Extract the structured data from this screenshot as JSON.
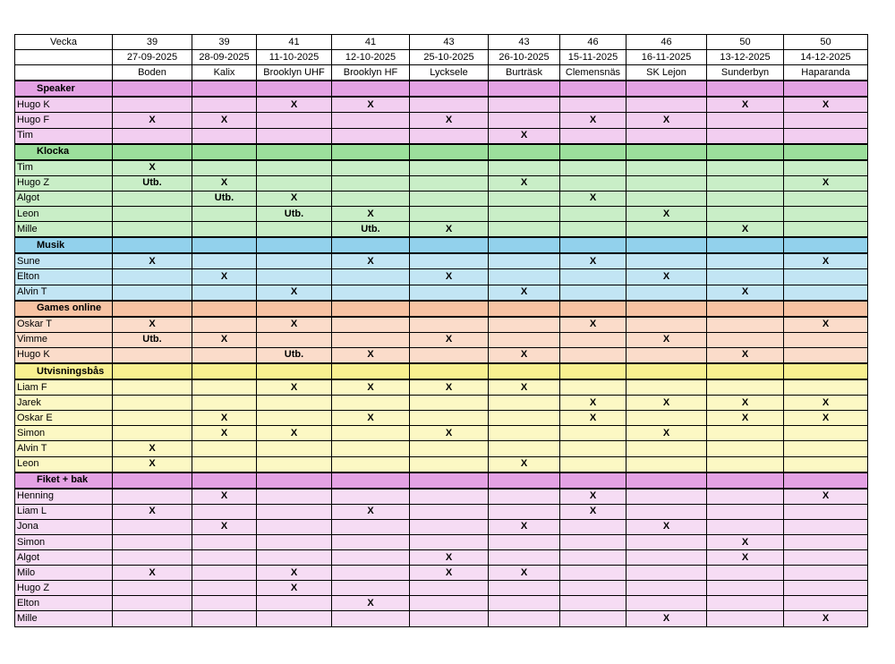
{
  "header": {
    "label": "Vecka",
    "weeks": [
      "39",
      "39",
      "41",
      "41",
      "43",
      "43",
      "46",
      "46",
      "50",
      "50"
    ],
    "dates": [
      "27-09-2025",
      "28-09-2025",
      "11-10-2025",
      "12-10-2025",
      "25-10-2025",
      "26-10-2025",
      "15-11-2025",
      "16-11-2025",
      "13-12-2025",
      "14-12-2025"
    ],
    "places": [
      "Boden",
      "Kalix",
      "Brooklyn UHF",
      "Brooklyn HF",
      "Lycksele",
      "Burträsk",
      "Clemensnäs",
      "SK Lejon",
      "Sunderbyn",
      "Haparanda"
    ]
  },
  "sections": [
    {
      "title": "Speaker",
      "section_color": "#e4a2e4",
      "row_color": "#f2cef0",
      "rows": [
        {
          "name": "Hugo K",
          "cells": [
            "",
            "",
            "X",
            "X",
            "",
            "",
            "",
            "",
            "X",
            "X"
          ]
        },
        {
          "name": "Hugo F",
          "cells": [
            "X",
            "X",
            "",
            "",
            "X",
            "",
            "X",
            "X",
            "",
            ""
          ]
        },
        {
          "name": "Tim",
          "cells": [
            "",
            "",
            "",
            "",
            "",
            "X",
            "",
            "",
            "",
            ""
          ]
        }
      ]
    },
    {
      "title": "Klocka",
      "section_color": "#9cdf9c",
      "row_color": "#c9eec7",
      "rows": [
        {
          "name": "Tim",
          "cells": [
            "X",
            "",
            "",
            "",
            "",
            "",
            "",
            "",
            "",
            ""
          ]
        },
        {
          "name": "Hugo Z",
          "cells": [
            "Utb.",
            "X",
            "",
            "",
            "",
            "X",
            "",
            "",
            "",
            "X"
          ]
        },
        {
          "name": "Algot",
          "cells": [
            "",
            "Utb.",
            "X",
            "",
            "",
            "",
            "X",
            "",
            "",
            ""
          ]
        },
        {
          "name": "Leon",
          "cells": [
            "",
            "",
            "Utb.",
            "X",
            "",
            "",
            "",
            "X",
            "",
            ""
          ]
        },
        {
          "name": "Mille",
          "cells": [
            "",
            "",
            "",
            "Utb.",
            "X",
            "",
            "",
            "",
            "X",
            ""
          ]
        }
      ]
    },
    {
      "title": "Musik",
      "section_color": "#92d1ec",
      "row_color": "#c2e5f4",
      "rows": [
        {
          "name": "Sune",
          "cells": [
            "X",
            "",
            "",
            "X",
            "",
            "",
            "X",
            "",
            "",
            "X"
          ]
        },
        {
          "name": "Elton",
          "cells": [
            "",
            "X",
            "",
            "",
            "X",
            "",
            "",
            "X",
            "",
            ""
          ]
        },
        {
          "name": "Alvin T",
          "cells": [
            "",
            "",
            "X",
            "",
            "",
            "X",
            "",
            "",
            "X",
            ""
          ]
        }
      ]
    },
    {
      "title": "Games online",
      "section_color": "#f7c3a3",
      "row_color": "#fbdcca",
      "rows": [
        {
          "name": "Oskar T",
          "cells": [
            "X",
            "",
            "X",
            "",
            "",
            "",
            "X",
            "",
            "",
            "X"
          ]
        },
        {
          "name": "Vimme",
          "cells": [
            "Utb.",
            "X",
            "",
            "",
            "X",
            "",
            "",
            "X",
            "",
            ""
          ]
        },
        {
          "name": "Hugo K",
          "cells": [
            "",
            "",
            "Utb.",
            "X",
            "",
            "X",
            "",
            "",
            "X",
            ""
          ]
        }
      ]
    },
    {
      "title": "Utvisningsbås",
      "section_color": "#f8f090",
      "row_color": "#fcf8c4",
      "rows": [
        {
          "name": "Liam F",
          "cells": [
            "",
            "",
            "X",
            "X",
            "X",
            "X",
            "",
            "",
            "",
            ""
          ]
        },
        {
          "name": "Jarek",
          "cells": [
            "",
            "",
            "",
            "",
            "",
            "",
            "X",
            "X",
            "X",
            "X"
          ]
        },
        {
          "name": "Oskar E",
          "cells": [
            "",
            "X",
            "",
            "X",
            "",
            "",
            "X",
            "",
            "X",
            "X"
          ]
        },
        {
          "name": "Simon",
          "cells": [
            "",
            "X",
            "X",
            "",
            "X",
            "",
            "",
            "X",
            "",
            ""
          ]
        },
        {
          "name": "Alvin T",
          "cells": [
            "X",
            "",
            "",
            "",
            "",
            "",
            "",
            "",
            "",
            ""
          ]
        },
        {
          "name": "Leon",
          "cells": [
            "X",
            "",
            "",
            "",
            "",
            "X",
            "",
            "",
            "",
            ""
          ]
        }
      ]
    },
    {
      "title": "Fiket + bak",
      "section_color": "#e4a2e4",
      "row_color": "#f6dcf4",
      "rows": [
        {
          "name": "Henning",
          "cells": [
            "",
            "X",
            "",
            "",
            "",
            "",
            "X",
            "",
            "",
            "X"
          ]
        },
        {
          "name": "Liam L",
          "cells": [
            "X",
            "",
            "",
            "X",
            "",
            "",
            "X",
            "",
            "",
            ""
          ]
        },
        {
          "name": "Jona",
          "cells": [
            "",
            "X",
            "",
            "",
            "",
            "X",
            "",
            "X",
            "",
            ""
          ]
        },
        {
          "name": "Simon",
          "cells": [
            "",
            "",
            "",
            "",
            "",
            "",
            "",
            "",
            "X",
            ""
          ]
        },
        {
          "name": "Algot",
          "cells": [
            "",
            "",
            "",
            "",
            "X",
            "",
            "",
            "",
            "X",
            ""
          ]
        },
        {
          "name": "Milo",
          "cells": [
            "X",
            "",
            "X",
            "",
            "X",
            "X",
            "",
            "",
            "",
            ""
          ]
        },
        {
          "name": "Hugo Z",
          "cells": [
            "",
            "",
            "X",
            "",
            "",
            "",
            "",
            "",
            "",
            ""
          ]
        },
        {
          "name": "Elton",
          "cells": [
            "",
            "",
            "",
            "X",
            "",
            "",
            "",
            "",
            "",
            ""
          ]
        },
        {
          "name": "Mille",
          "cells": [
            "",
            "",
            "",
            "",
            "",
            "",
            "",
            "X",
            "",
            "X"
          ]
        }
      ]
    }
  ]
}
